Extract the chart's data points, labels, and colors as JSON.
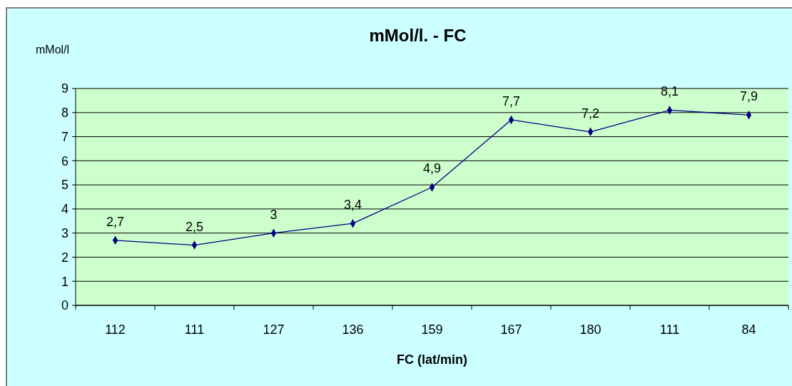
{
  "chart_data": {
    "type": "line",
    "title": "mMol/l. - FC",
    "xlabel": "FC (lat/min)",
    "ylabel": "mMol/l",
    "categories": [
      "112",
      "111",
      "127",
      "136",
      "159",
      "167",
      "180",
      "111",
      "84"
    ],
    "series": [
      {
        "color": "#000080",
        "values": [
          2.7,
          2.5,
          3,
          3.4,
          4.9,
          7.7,
          7.2,
          8.1,
          7.9
        ],
        "value_labels": [
          "2,7",
          "2,5",
          "3",
          "3,4",
          "4,9",
          "7,7",
          "7,2",
          "8,1",
          "7,9"
        ]
      }
    ],
    "ylim": [
      0,
      9
    ],
    "yticks": [
      0,
      1,
      2,
      3,
      4,
      5,
      6,
      7,
      8,
      9
    ],
    "grid": "y",
    "marker": "diamond",
    "line_style": "solid"
  }
}
